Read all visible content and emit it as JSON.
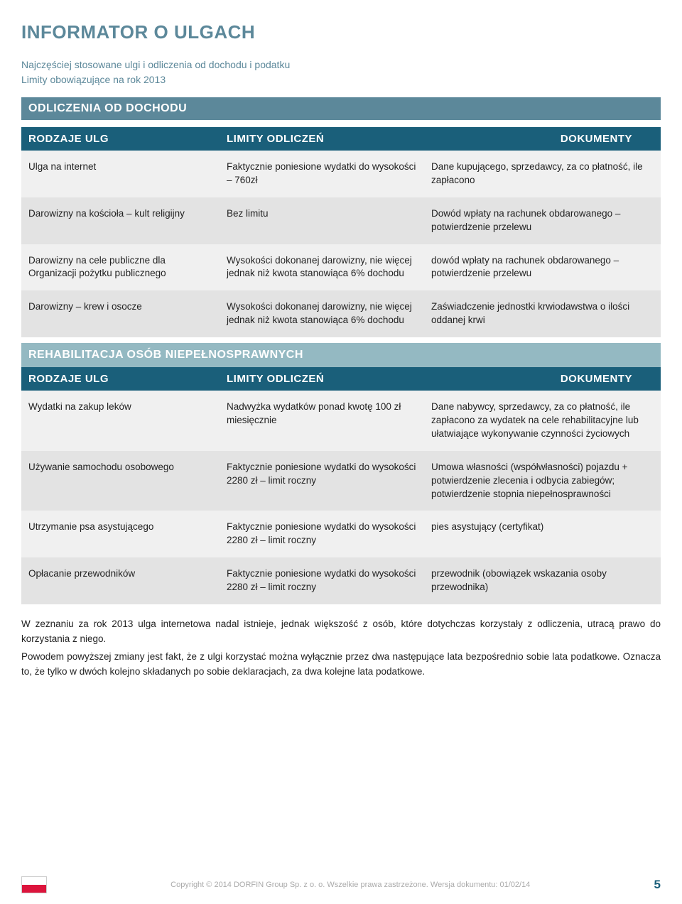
{
  "page": {
    "title": "INFORMATOR O ULGACH",
    "intro_line1": "Najczęściej stosowane ulgi i odliczenia od dochodu i podatku",
    "intro_line2": "Limity obowiązujące na rok 2013"
  },
  "section1_header": "ODLICZENIA OD DOCHODU",
  "table_headers": {
    "col1": "RODZAJE ULG",
    "col2": "LIMITY ODLICZEŃ",
    "col3": "DOKUMENTY"
  },
  "table1": {
    "rows": [
      {
        "c1": "Ulga na internet",
        "c2": "Faktycznie poniesione wydatki do wysokości – 760zł",
        "c3": "Dane kupującego, sprzedawcy, za co płatność, ile zapłacono"
      },
      {
        "c1": "Darowizny na kościoła – kult religijny",
        "c2": "Bez limitu",
        "c3": "Dowód wpłaty na rachunek obdarowanego – potwierdzenie przelewu"
      },
      {
        "c1": "Darowizny na cele publiczne dla Organizacji pożytku publicznego",
        "c2": "Wysokości dokonanej darowizny, nie więcej jednak niż kwota stanowiąca 6% dochodu",
        "c3": "dowód wpłaty na rachunek obdarowanego – potwierdzenie przelewu"
      },
      {
        "c1": "Darowizny – krew i osocze",
        "c2": "Wysokości dokonanej darowizny, nie więcej jednak niż kwota stanowiąca 6% dochodu",
        "c3": "Zaświadczenie jednostki krwiodawstwa o ilości oddanej krwi"
      }
    ]
  },
  "section2_header": "REHABILITACJA OSÓB NIEPEŁNOSPRAWNYCH",
  "table2": {
    "rows": [
      {
        "c1": "Wydatki na zakup leków",
        "c2": "Nadwyżka wydatków ponad kwotę 100 zł miesięcznie",
        "c3": "Dane nabywcy, sprzedawcy, za co płatność, ile zapłacono za wydatek na cele rehabilitacyjne lub ułatwiające wykonywanie czynności życiowych"
      },
      {
        "c1": "Używanie samochodu osobowego",
        "c2": "Faktycznie poniesione wydatki do wysokości 2280 zł – limit roczny",
        "c3": "Umowa własności (współwłasności) pojazdu + potwierdzenie zlecenia i odbycia zabiegów; potwierdzenie stopnia niepełnosprawności"
      },
      {
        "c1": "Utrzymanie psa asystującego",
        "c2": "Faktycznie poniesione wydatki do wysokości 2280 zł – limit roczny",
        "c3": "pies asystujący (certyfikat)"
      },
      {
        "c1": "Opłacanie przewodników",
        "c2": "Faktycznie poniesione wydatki do wysokości 2280 zł – limit roczny",
        "c3": "przewodnik (obowiązek wskazania osoby przewodnika)"
      }
    ]
  },
  "body_para1": "W zeznaniu za rok 2013 ulga internetowa nadal istnieje, jednak większość z osób, które dotychczas korzystały z odliczenia, utracą prawo do korzystania z niego.",
  "body_para2": "Powodem powyższej zmiany jest fakt, że z ulgi korzystać można wyłącznie przez dwa następujące lata bezpośrednio sobie lata podatkowe. Oznacza to, że tylko w dwóch kolejno składanych po sobie deklaracjach, za dwa kolejne lata podatkowe.",
  "footer": {
    "copyright": "Copyright © 2014 DORFIN Group Sp. z o. o. Wszelkie prawa zastrzeżone. Wersja dokumentu: 01/02/14",
    "page_num": "5"
  },
  "colors": {
    "title": "#5c889a",
    "section_bg": "#5c889a",
    "table_header_bg": "#1a5f7a",
    "sub_section_bg": "#94b9c2",
    "row_odd": "#f0f0f0",
    "row_even": "#e3e3e3"
  }
}
